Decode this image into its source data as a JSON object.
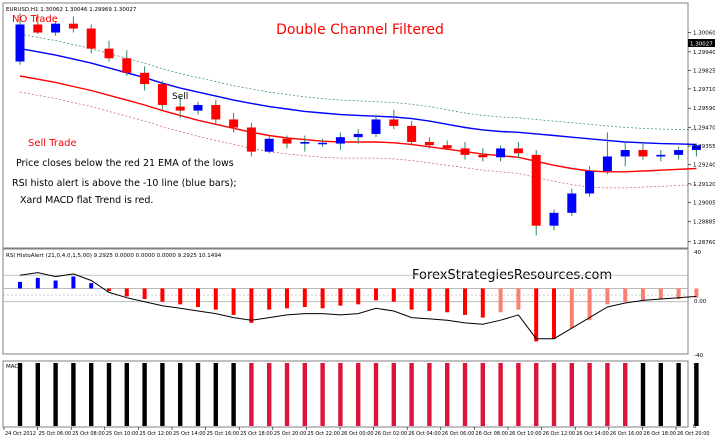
{
  "header": {
    "symbol_line": "EURUSD,H1  1.30062 1.30046 1.29969 1.30027"
  },
  "title": "Double Channel Filtered",
  "annotations": {
    "no_trade": "NO Trade",
    "sell": "Sell",
    "sell_trade": "Sell Trade",
    "desc_1": "Price closes below the red 21 EMA of the lows",
    "desc_2": "RSI histo alert is above the -10 line (blue bars);",
    "desc_3": "Xard MACD flat Trend is red."
  },
  "watermark": "ForexStrategiesResources.com",
  "price_axis": {
    "current_price": "1.30027",
    "ticks": [
      "1.30060",
      "1.29940",
      "1.29825",
      "1.29710",
      "1.29590",
      "1.29470",
      "1.29355",
      "1.29240",
      "1.29120",
      "1.29005",
      "1.28885",
      "1.28760"
    ]
  },
  "rsi_panel": {
    "label": "RSI HistoAlert (21,0,4,0,1,5,00) 9.2925 0.0000 0.0000 0.0000 9.2925 10.1494",
    "ticks": [
      "40",
      "0.00",
      "-40"
    ]
  },
  "macd_panel": {
    "label": "MACD"
  },
  "time_axis": {
    "labels": [
      "24 Oct 2012",
      "25 Oct 06:00",
      "25 Oct 08:00",
      "25 Oct 10:00",
      "25 Oct 12:00",
      "25 Oct 14:00",
      "25 Oct 16:00",
      "25 Oct 18:00",
      "25 Oct 20:00",
      "25 Oct 22:00",
      "26 Oct 00:00",
      "26 Oct 02:00",
      "26 Oct 04:00",
      "26 Oct 06:00",
      "26 Oct 08:00",
      "26 Oct 10:00",
      "26 Oct 12:00",
      "26 Oct 14:00",
      "26 Oct 16:00",
      "26 Oct 18:00",
      "26 Oct 20:00"
    ]
  },
  "colors": {
    "bull": "#0000ff",
    "bear": "#ff0000",
    "ema_blue": "#0000ff",
    "ema_red": "#ff0000",
    "annotation_red": "#ff0000",
    "macd_black": "#000000",
    "macd_red": "#dc143c",
    "rsi_red": "#ff0000",
    "rsi_salmon": "#fa8072",
    "rsi_blue": "#0000ff"
  },
  "chart_data": {
    "type": "candlestick",
    "candles": [
      {
        "o": 1.2988,
        "h": 1.3018,
        "l": 1.2986,
        "c": 1.3011
      },
      {
        "o": 1.3011,
        "h": 1.30175,
        "l": 1.3005,
        "c": 1.3006
      },
      {
        "o": 1.3006,
        "h": 1.3013,
        "l": 1.3004,
        "c": 1.30115
      },
      {
        "o": 1.30115,
        "h": 1.3016,
        "l": 1.3006,
        "c": 1.30085
      },
      {
        "o": 1.30085,
        "h": 1.3011,
        "l": 1.2993,
        "c": 1.2996
      },
      {
        "o": 1.2996,
        "h": 1.3001,
        "l": 1.2988,
        "c": 1.299
      },
      {
        "o": 1.299,
        "h": 1.2995,
        "l": 1.2979,
        "c": 1.2981
      },
      {
        "o": 1.2981,
        "h": 1.2985,
        "l": 1.297,
        "c": 1.2974
      },
      {
        "o": 1.2974,
        "h": 1.2976,
        "l": 1.2958,
        "c": 1.2961
      },
      {
        "o": 1.296,
        "h": 1.2966,
        "l": 1.2953,
        "c": 1.29575
      },
      {
        "o": 1.29575,
        "h": 1.2963,
        "l": 1.2955,
        "c": 1.2961
      },
      {
        "o": 1.2961,
        "h": 1.2964,
        "l": 1.2949,
        "c": 1.2952
      },
      {
        "o": 1.2952,
        "h": 1.2956,
        "l": 1.2944,
        "c": 1.2947
      },
      {
        "o": 1.2947,
        "h": 1.295,
        "l": 1.2929,
        "c": 1.2932
      },
      {
        "o": 1.2932,
        "h": 1.2942,
        "l": 1.2931,
        "c": 1.294
      },
      {
        "o": 1.294,
        "h": 1.2942,
        "l": 1.2934,
        "c": 1.2937
      },
      {
        "o": 1.2937,
        "h": 1.2942,
        "l": 1.2932,
        "c": 1.2938
      },
      {
        "o": 1.29375,
        "h": 1.294,
        "l": 1.2935,
        "c": 1.29375
      },
      {
        "o": 1.2937,
        "h": 1.2944,
        "l": 1.2933,
        "c": 1.2941
      },
      {
        "o": 1.2941,
        "h": 1.2946,
        "l": 1.2937,
        "c": 1.2943
      },
      {
        "o": 1.2943,
        "h": 1.2955,
        "l": 1.2941,
        "c": 1.2952
      },
      {
        "o": 1.2952,
        "h": 1.2958,
        "l": 1.2946,
        "c": 1.2948
      },
      {
        "o": 1.2948,
        "h": 1.2951,
        "l": 1.2936,
        "c": 1.2938
      },
      {
        "o": 1.2938,
        "h": 1.2941,
        "l": 1.2934,
        "c": 1.2936
      },
      {
        "o": 1.2936,
        "h": 1.2939,
        "l": 1.2933,
        "c": 1.2934
      },
      {
        "o": 1.2934,
        "h": 1.2938,
        "l": 1.2927,
        "c": 1.293
      },
      {
        "o": 1.293,
        "h": 1.2934,
        "l": 1.2926,
        "c": 1.29285
      },
      {
        "o": 1.29285,
        "h": 1.2936,
        "l": 1.2926,
        "c": 1.2934
      },
      {
        "o": 1.2934,
        "h": 1.2938,
        "l": 1.2928,
        "c": 1.2931
      },
      {
        "o": 1.293,
        "h": 1.2933,
        "l": 1.288,
        "c": 1.2886
      },
      {
        "o": 1.2886,
        "h": 1.2896,
        "l": 1.2883,
        "c": 1.2894
      },
      {
        "o": 1.2894,
        "h": 1.2909,
        "l": 1.2892,
        "c": 1.2906
      },
      {
        "o": 1.2906,
        "h": 1.2923,
        "l": 1.2904,
        "c": 1.292
      },
      {
        "o": 1.292,
        "h": 1.2944,
        "l": 1.2918,
        "c": 1.2929
      },
      {
        "o": 1.2929,
        "h": 1.2938,
        "l": 1.2923,
        "c": 1.2933
      },
      {
        "o": 1.2933,
        "h": 1.2938,
        "l": 1.2927,
        "c": 1.2929
      },
      {
        "o": 1.2929,
        "h": 1.2933,
        "l": 1.2926,
        "c": 1.293
      },
      {
        "o": 1.293,
        "h": 1.2935,
        "l": 1.2927,
        "c": 1.2933
      },
      {
        "o": 1.2933,
        "h": 1.2937,
        "l": 1.2929,
        "c": 1.2936
      }
    ],
    "ema_blue": [
      1.2996,
      1.2994,
      1.2992,
      1.29895,
      1.2987,
      1.2984,
      1.2981,
      1.2978,
      1.29745,
      1.29715,
      1.2969,
      1.29665,
      1.2964,
      1.2962,
      1.296,
      1.29585,
      1.2957,
      1.2956,
      1.2955,
      1.29545,
      1.2954,
      1.29535,
      1.29525,
      1.2951,
      1.2949,
      1.2947,
      1.29455,
      1.29445,
      1.2944,
      1.2943,
      1.2942,
      1.2941,
      1.294,
      1.2939,
      1.2938,
      1.29375,
      1.2937,
      1.29368,
      1.29365
    ],
    "ema_red": [
      1.2979,
      1.2977,
      1.2975,
      1.29725,
      1.297,
      1.2967,
      1.2964,
      1.2961,
      1.29575,
      1.29545,
      1.29515,
      1.2949,
      1.29465,
      1.2944,
      1.2942,
      1.29405,
      1.29395,
      1.29385,
      1.2938,
      1.2938,
      1.2938,
      1.29375,
      1.29365,
      1.2935,
      1.29335,
      1.2932,
      1.29305,
      1.29295,
      1.29285,
      1.2926,
      1.29235,
      1.29215,
      1.292,
      1.29195,
      1.29195,
      1.292,
      1.29205,
      1.2921,
      1.29215
    ],
    "rsi_hist": [
      5,
      8,
      6,
      9,
      4,
      -2,
      -6,
      -8,
      -10,
      -12,
      -14,
      -16,
      -20,
      -26,
      -16,
      -15,
      -14,
      -15,
      -13,
      -12,
      -9,
      -10,
      -16,
      -17,
      -18,
      -20,
      -22,
      -18,
      -16,
      -40,
      -38,
      -30,
      -24,
      -12,
      -10,
      -9,
      -8,
      -8,
      -7
    ],
    "rsi_hist_colors": [
      "blue",
      "blue",
      "blue",
      "blue",
      "blue",
      "red",
      "red",
      "red",
      "red",
      "red",
      "red",
      "red",
      "red",
      "red",
      "red",
      "red",
      "red",
      "red",
      "red",
      "red",
      "red",
      "red",
      "red",
      "red",
      "red",
      "red",
      "red",
      "salmon",
      "salmon",
      "red",
      "red",
      "salmon",
      "salmon",
      "salmon",
      "salmon",
      "salmon",
      "salmon",
      "salmon",
      "salmon"
    ],
    "rsi_line": [
      10,
      12,
      9,
      11,
      6,
      -3,
      -7,
      -10,
      -13,
      -15,
      -17,
      -19,
      -22,
      -24,
      -22,
      -20,
      -19,
      -19,
      -20,
      -19,
      -15,
      -17,
      -22,
      -23,
      -24,
      -26,
      -27,
      -24,
      -20,
      -38,
      -38,
      -30,
      -22,
      -14,
      -11,
      -9,
      -8,
      -7,
      -6
    ],
    "macd_colors": [
      "black",
      "black",
      "black",
      "black",
      "black",
      "black",
      "black",
      "black",
      "black",
      "black",
      "black",
      "black",
      "black",
      "red",
      "red",
      "red",
      "red",
      "red",
      "red",
      "red",
      "red",
      "red",
      "red",
      "red",
      "red",
      "red",
      "red",
      "red",
      "red",
      "red",
      "red",
      "red",
      "red",
      "red",
      "red",
      "black",
      "black",
      "black",
      "black"
    ]
  }
}
